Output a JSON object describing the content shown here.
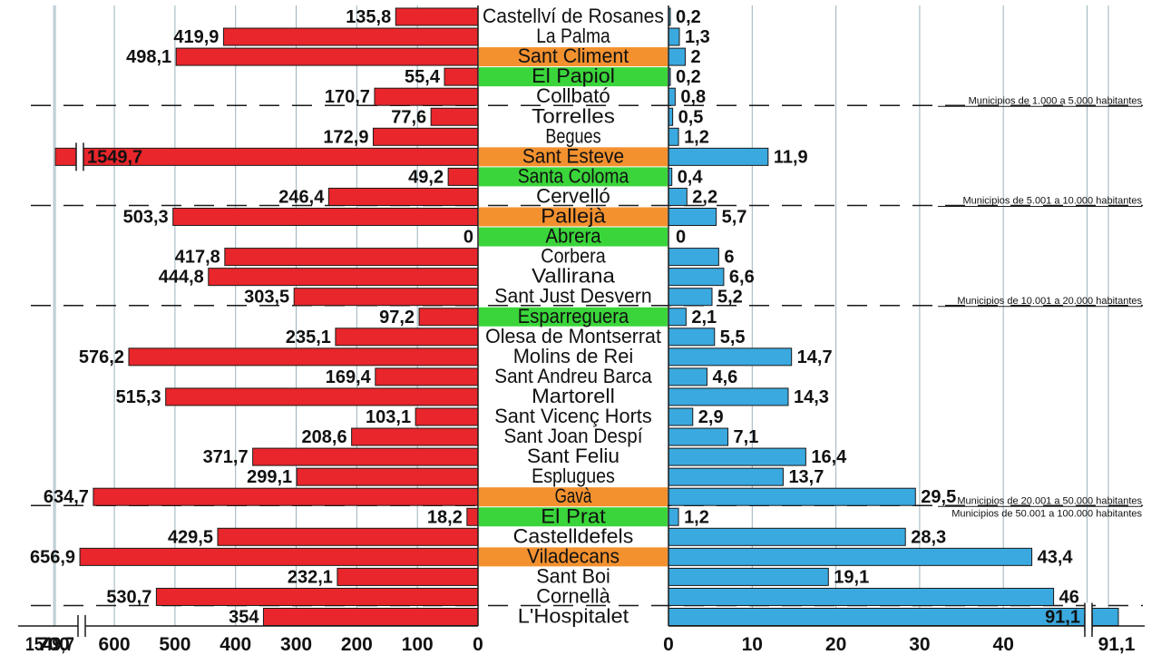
{
  "chart_data": {
    "type": "bar",
    "orientation": "horizontal-butterfly",
    "title": "",
    "xlabel": "",
    "ylabel": "",
    "colors": {
      "left": "#e8262b",
      "right": "#3aa9df",
      "highlight_orange": "#f3912f",
      "highlight_green": "#3ad53a",
      "gridline": "#9ab3bc"
    },
    "left_axis": {
      "xlim": [
        0,
        700
      ],
      "ticks": [
        0,
        100,
        200,
        300,
        400,
        500,
        600,
        700
      ],
      "tick_labels": [
        "0",
        "100",
        "200",
        "300",
        "400",
        "500",
        "600",
        "700"
      ],
      "break_label": "1549,7"
    },
    "right_axis": {
      "xlim": [
        0,
        50
      ],
      "ticks": [
        0,
        10,
        20,
        30,
        40
      ],
      "tick_labels": [
        "0",
        "10",
        "20",
        "30",
        "40"
      ],
      "break_label": "91,1"
    },
    "rows": [
      {
        "name": "Castellví de Rosanes",
        "left": 135.8,
        "left_label": "135,8",
        "right": 0.2,
        "right_label": "0,2",
        "highlight": "none"
      },
      {
        "name": "La Palma",
        "left": 419.9,
        "left_label": "419,9",
        "right": 1.3,
        "right_label": "1,3",
        "highlight": "none"
      },
      {
        "name": "Sant Climent",
        "left": 498.1,
        "left_label": "498,1",
        "right": 2,
        "right_label": "2",
        "highlight": "orange"
      },
      {
        "name": "El Papiol",
        "left": 55.4,
        "left_label": "55,4",
        "right": 0.2,
        "right_label": "0,2",
        "highlight": "green"
      },
      {
        "name": "Collbató",
        "left": 170.7,
        "left_label": "170,7",
        "right": 0.8,
        "right_label": "0,8",
        "highlight": "none"
      },
      {
        "name": "Torrelles",
        "left": 77.6,
        "left_label": "77,6",
        "right": 0.5,
        "right_label": "0,5",
        "highlight": "none"
      },
      {
        "name": "Begues",
        "left": 172.9,
        "left_label": "172,9",
        "right": 1.2,
        "right_label": "1,2",
        "highlight": "none"
      },
      {
        "name": "Sant Esteve",
        "left": 1549.7,
        "left_label": "1549,7",
        "right": 11.9,
        "right_label": "11,9",
        "highlight": "orange",
        "left_broken": true
      },
      {
        "name": "Santa Coloma",
        "left": 49.2,
        "left_label": "49,2",
        "right": 0.4,
        "right_label": "0,4",
        "highlight": "green"
      },
      {
        "name": "Cervelló",
        "left": 246.4,
        "left_label": "246,4",
        "right": 2.2,
        "right_label": "2,2",
        "highlight": "none"
      },
      {
        "name": "Pallejà",
        "left": 503.3,
        "left_label": "503,3",
        "right": 5.7,
        "right_label": "5,7",
        "highlight": "orange"
      },
      {
        "name": "Abrera",
        "left": 0,
        "left_label": "0",
        "right": 0,
        "right_label": "0",
        "highlight": "green"
      },
      {
        "name": "Corbera",
        "left": 417.8,
        "left_label": "417,8",
        "right": 6,
        "right_label": "6",
        "highlight": "none"
      },
      {
        "name": "Vallirana",
        "left": 444.8,
        "left_label": "444,8",
        "right": 6.6,
        "right_label": "6,6",
        "highlight": "none"
      },
      {
        "name": "Sant Just Desvern",
        "left": 303.5,
        "left_label": "303,5",
        "right": 5.2,
        "right_label": "5,2",
        "highlight": "none"
      },
      {
        "name": "Esparreguera",
        "left": 97.2,
        "left_label": "97,2",
        "right": 2.1,
        "right_label": "2,1",
        "highlight": "green"
      },
      {
        "name": "Olesa de Montserrat",
        "left": 235.1,
        "left_label": "235,1",
        "right": 5.5,
        "right_label": "5,5",
        "highlight": "none"
      },
      {
        "name": "Molins de Rei",
        "left": 576.2,
        "left_label": "576,2",
        "right": 14.7,
        "right_label": "14,7",
        "highlight": "none"
      },
      {
        "name": "Sant Andreu Barca",
        "left": 169.4,
        "left_label": "169,4",
        "right": 4.6,
        "right_label": "4,6",
        "highlight": "none"
      },
      {
        "name": "Martorell",
        "left": 515.3,
        "left_label": "515,3",
        "right": 14.3,
        "right_label": "14,3",
        "highlight": "none"
      },
      {
        "name": "Sant Vicenç Horts",
        "left": 103.1,
        "left_label": "103,1",
        "right": 2.9,
        "right_label": "2,9",
        "highlight": "none"
      },
      {
        "name": "Sant Joan Despí",
        "left": 208.6,
        "left_label": "208,6",
        "right": 7.1,
        "right_label": "7,1",
        "highlight": "none"
      },
      {
        "name": "Sant Feliu",
        "left": 371.7,
        "left_label": "371,7",
        "right": 16.4,
        "right_label": "16,4",
        "highlight": "none"
      },
      {
        "name": "Esplugues",
        "left": 299.1,
        "left_label": "299,1",
        "right": 13.7,
        "right_label": "13,7",
        "highlight": "none"
      },
      {
        "name": "Gavà",
        "left": 634.7,
        "left_label": "634,7",
        "right": 29.5,
        "right_label": "29,5",
        "highlight": "orange"
      },
      {
        "name": "El Prat",
        "left": 18.2,
        "left_label": "18,2",
        "right": 1.2,
        "right_label": "1,2",
        "highlight": "green"
      },
      {
        "name": "Castelldefels",
        "left": 429.5,
        "left_label": "429,5",
        "right": 28.3,
        "right_label": "28,3",
        "highlight": "none"
      },
      {
        "name": "Viladecans",
        "left": 656.9,
        "left_label": "656,9",
        "right": 43.4,
        "right_label": "43,4",
        "highlight": "orange"
      },
      {
        "name": "Sant Boi",
        "left": 232.1,
        "left_label": "232,1",
        "right": 19.1,
        "right_label": "19,1",
        "highlight": "none"
      },
      {
        "name": "Cornellà",
        "left": 530.7,
        "left_label": "530,7",
        "right": 46,
        "right_label": "46",
        "highlight": "none"
      },
      {
        "name": "L'Hospitalet",
        "left": 354,
        "left_label": "354",
        "right": 91.1,
        "right_label": "91,1",
        "highlight": "none",
        "right_broken": true
      }
    ],
    "groups": [
      {
        "label": "Municipios de 1.000 a 5.000 habitantes",
        "below_row": 4
      },
      {
        "label": "Municipios de 5.001 a 10.000 habitantes",
        "below_row": 9
      },
      {
        "label": "Municipios de 10.001 a 20.000 habitantes",
        "below_row": 14
      },
      {
        "label": "Municipios de 20.001 a 50.000 habitantes",
        "below_row": 24
      },
      {
        "label": "Municipios de 50.001 a 100.000 habitantes",
        "below_row": 24
      },
      {
        "label": "",
        "below_row": 29
      }
    ]
  }
}
